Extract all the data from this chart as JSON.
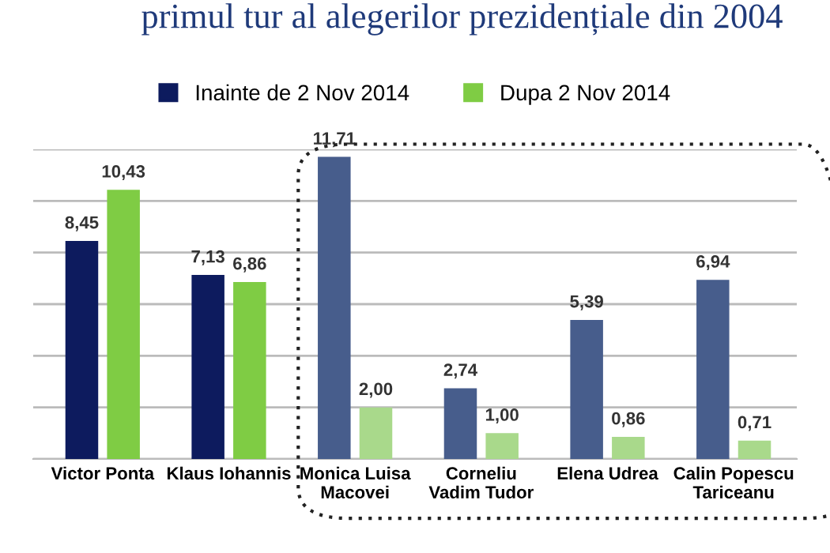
{
  "chart_data": {
    "type": "bar",
    "title": "primul tur al alegerilor prezidențiale din 2004",
    "categories": [
      "Victor Ponta",
      "Klaus Iohannis",
      "Monica Luisa\nMacovei",
      "Corneliu\nVadim Tudor",
      "Elena Udrea",
      "Calin Popescu\nTariceanu"
    ],
    "series": [
      {
        "name": "Inainte de 2 Nov 2014",
        "color": "#0d1b5e",
        "colors": [
          "#0d1b5e",
          "#0d1b5e",
          "#475d8c",
          "#475d8c",
          "#475d8c",
          "#475d8c"
        ],
        "values": [
          8.45,
          7.13,
          11.71,
          2.74,
          5.39,
          6.94
        ],
        "value_labels": [
          "8,45",
          "7,13",
          "11,71",
          "2,74",
          "5,39",
          "6,94"
        ]
      },
      {
        "name": "Dupa 2 Nov 2014",
        "color": "#7fcc44",
        "colors": [
          "#7fcc44",
          "#7fcc44",
          "#a9d98b",
          "#a9d98b",
          "#a9d98b",
          "#a9d98b"
        ],
        "values": [
          10.43,
          6.86,
          2.0,
          1.0,
          0.86,
          0.71
        ],
        "value_labels": [
          "10,43",
          "6,86",
          "2,00",
          "1,00",
          "0,86",
          "0,71"
        ]
      }
    ],
    "ylim": [
      0,
      12
    ],
    "yticks": [
      {
        "value": 0,
        "label": null
      },
      {
        "value": 2,
        "label": null
      },
      {
        "value": 4,
        "label": null
      },
      {
        "value": 6,
        "label": null
      },
      {
        "value": 8,
        "label": null
      },
      {
        "value": 10,
        "label": null
      },
      {
        "value": 12,
        "label": null
      }
    ],
    "tick_labels": "x",
    "grid": "y",
    "legend": "top"
  }
}
